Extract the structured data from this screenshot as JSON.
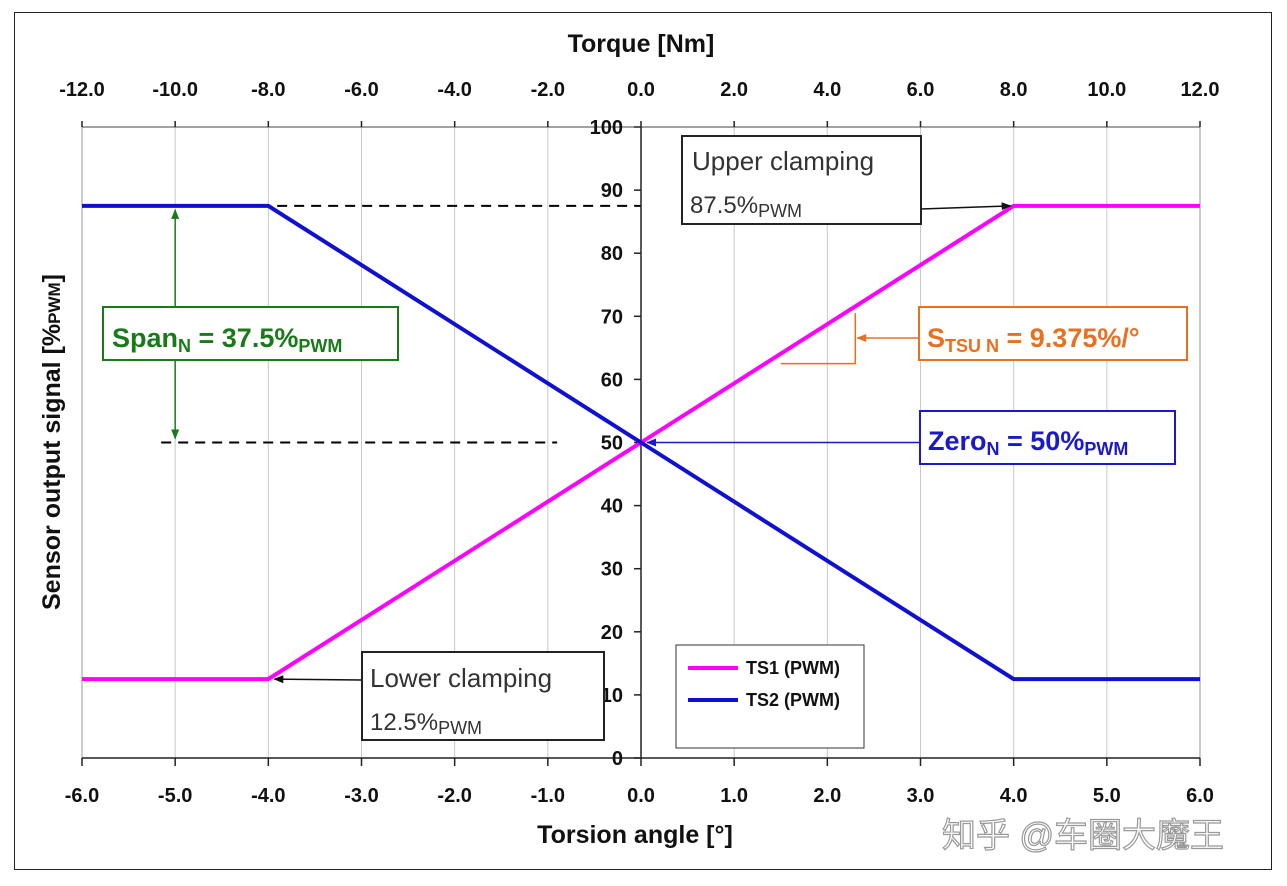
{
  "chart_data": {
    "type": "line",
    "title": "",
    "xlabel": "Torsion angle [°]",
    "x2label": "Torque [Nm]",
    "ylabel": "Sensor output signal [%PWM]",
    "ylabel_main": "Sensor output signal [%",
    "ylabel_sub": "PWM",
    "ylabel_end": "]",
    "xlim": [
      -6,
      6
    ],
    "ylim": [
      0,
      100
    ],
    "x_ticks": [
      "-6.0",
      "-5.0",
      "-4.0",
      "-3.0",
      "-2.0",
      "-1.0",
      "0.0",
      "1.0",
      "2.0",
      "3.0",
      "4.0",
      "5.0",
      "6.0"
    ],
    "x2_ticks": [
      "-12.0",
      "-10.0",
      "-8.0",
      "-6.0",
      "-4.0",
      "-2.0",
      "0.0",
      "2.0",
      "4.0",
      "6.0",
      "8.0",
      "10.0",
      "12.0"
    ],
    "y_ticks": [
      "0",
      "10",
      "20",
      "30",
      "40",
      "50",
      "60",
      "70",
      "80",
      "90",
      "100"
    ],
    "series": [
      {
        "name": "TS1 (PWM)",
        "color": "#ff00ff",
        "x": [
          -6,
          -4,
          4,
          6
        ],
        "y": [
          12.5,
          12.5,
          87.5,
          87.5
        ]
      },
      {
        "name": "TS2 (PWM)",
        "color": "#1010d0",
        "x": [
          -6,
          -4,
          4,
          6
        ],
        "y": [
          87.5,
          87.5,
          12.5,
          12.5
        ]
      }
    ],
    "annotations": {
      "upper": {
        "line1": "Upper clamping",
        "value": "87.5%",
        "sub": "PWM"
      },
      "lower": {
        "line1": "Lower clamping",
        "value": "12.5%",
        "sub": "PWM"
      },
      "span": {
        "main": "Span",
        "sub1": "N",
        "mid": " = 37.5%",
        "sub2": "PWM",
        "color": "#1a7a1a"
      },
      "stsu": {
        "main": "S",
        "sub1": "TSU N",
        "mid": " = 9.375%/°",
        "color": "#e87020"
      },
      "zero": {
        "main": "Zero",
        "sub1": "N",
        "mid": " = 50%",
        "sub2": "PWM",
        "color": "#1a1ac8"
      }
    },
    "legend_position": "bottom-right"
  },
  "watermark": "知乎 @车圈大魔王"
}
